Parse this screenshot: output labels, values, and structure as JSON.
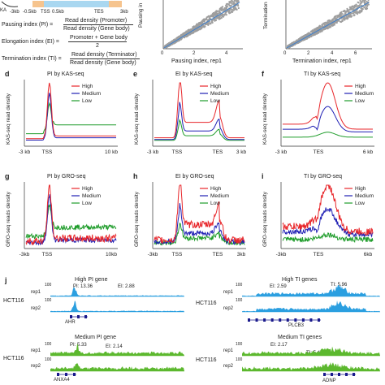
{
  "top": {
    "schematic": {
      "ticks": [
        "-3kb",
        "-0.5kb",
        "TSS",
        "0.5kb",
        "TES",
        "3kb"
      ],
      "ka_label": "KA"
    },
    "equations": [
      {
        "name": "Pausing index (PI) =",
        "num": "Read density (Promoter)",
        "den": "Read density (Gene body)"
      },
      {
        "name": "Elongation index (EI) =",
        "num": "Promoter + Gene body",
        "den": "2"
      },
      {
        "name": "Termination index (TI) =",
        "num": "Read density (Terminator)",
        "den": "Read density (Gene body)"
      }
    ],
    "scatter_left": {
      "ylabel": "Pausing in",
      "xlabel": "Pausing index, rep1",
      "xticks": [
        "0",
        "2",
        "4"
      ]
    },
    "scatter_right": {
      "ylabel": "Termination",
      "xlabel": "Termination index, rep1",
      "xticks": [
        "0",
        "2",
        "4",
        "6"
      ]
    }
  },
  "legend": [
    "High",
    "Medium",
    "Low"
  ],
  "colors": {
    "high": "#e8262a",
    "medium": "#1f1fb4",
    "low": "#1e9c2a",
    "track_blue": "#2b9fe0",
    "track_green": "#5cb82e",
    "scatter": "#9e9e9e",
    "fit": "#3a7fd0"
  },
  "panels": [
    {
      "letter": "d",
      "title": "PI by KAS-seq",
      "ylabel": "KAS-seq read density",
      "xticks": [
        "-3 kb",
        "TSS",
        "10 kb"
      ]
    },
    {
      "letter": "e",
      "title": "EI by KAS-seq",
      "ylabel": "KAS-seq read density",
      "xticks": [
        "-3 kb",
        "TSS",
        "TES",
        "3 kb"
      ]
    },
    {
      "letter": "f",
      "title": "TI by KAS-seq",
      "ylabel": "KAS-seq read density",
      "xticks": [
        "-3 kb",
        "TES",
        "6 kb"
      ]
    },
    {
      "letter": "g",
      "title": "PI by GRO-seq",
      "ylabel": "GRO-seq reads density",
      "xticks": [
        "-3kb",
        "TSS",
        "10kb"
      ]
    },
    {
      "letter": "h",
      "title": "EI by GRO-seq",
      "ylabel": "GRO-seq reads density",
      "xticks": [
        "-3kb",
        "TSS",
        "TES",
        "3kb"
      ]
    },
    {
      "letter": "i",
      "title": "TI by GRO-seq",
      "ylabel": "GRO-seq reads density",
      "xticks": [
        "-3kb",
        "TES",
        "6kb"
      ]
    }
  ],
  "tracks": {
    "letter": "j",
    "blocks": [
      {
        "title": "High PI gene",
        "cell": "HCT116",
        "reps": [
          "rep1",
          "rep2"
        ],
        "scale": "100",
        "idx1": "PI: 13.36",
        "idx2": "EI: 2.88",
        "gene": "AHR"
      },
      {
        "title": "High TI genes",
        "cell": "HCT116",
        "reps": [
          "rep1",
          "rep2"
        ],
        "scale": "100",
        "idx1": "EI: 2.59",
        "idx2": "TI: 5.96",
        "gene": "PLCB3"
      },
      {
        "title": "Medium PI gene",
        "cell": "HCT116",
        "reps": [
          "rep1",
          "rep2"
        ],
        "scale": "100",
        "idx1": "PI: 5.33",
        "idx2": "EI: 2.14",
        "gene": "ANXA4"
      },
      {
        "title": "Medium TI genes",
        "cell": "HCT116",
        "reps": [
          "rep1",
          "rep2"
        ],
        "scale": "100",
        "idx1": "EI: 2.17",
        "idx2": "TI: 5.47",
        "gene": "ADNP"
      }
    ]
  }
}
